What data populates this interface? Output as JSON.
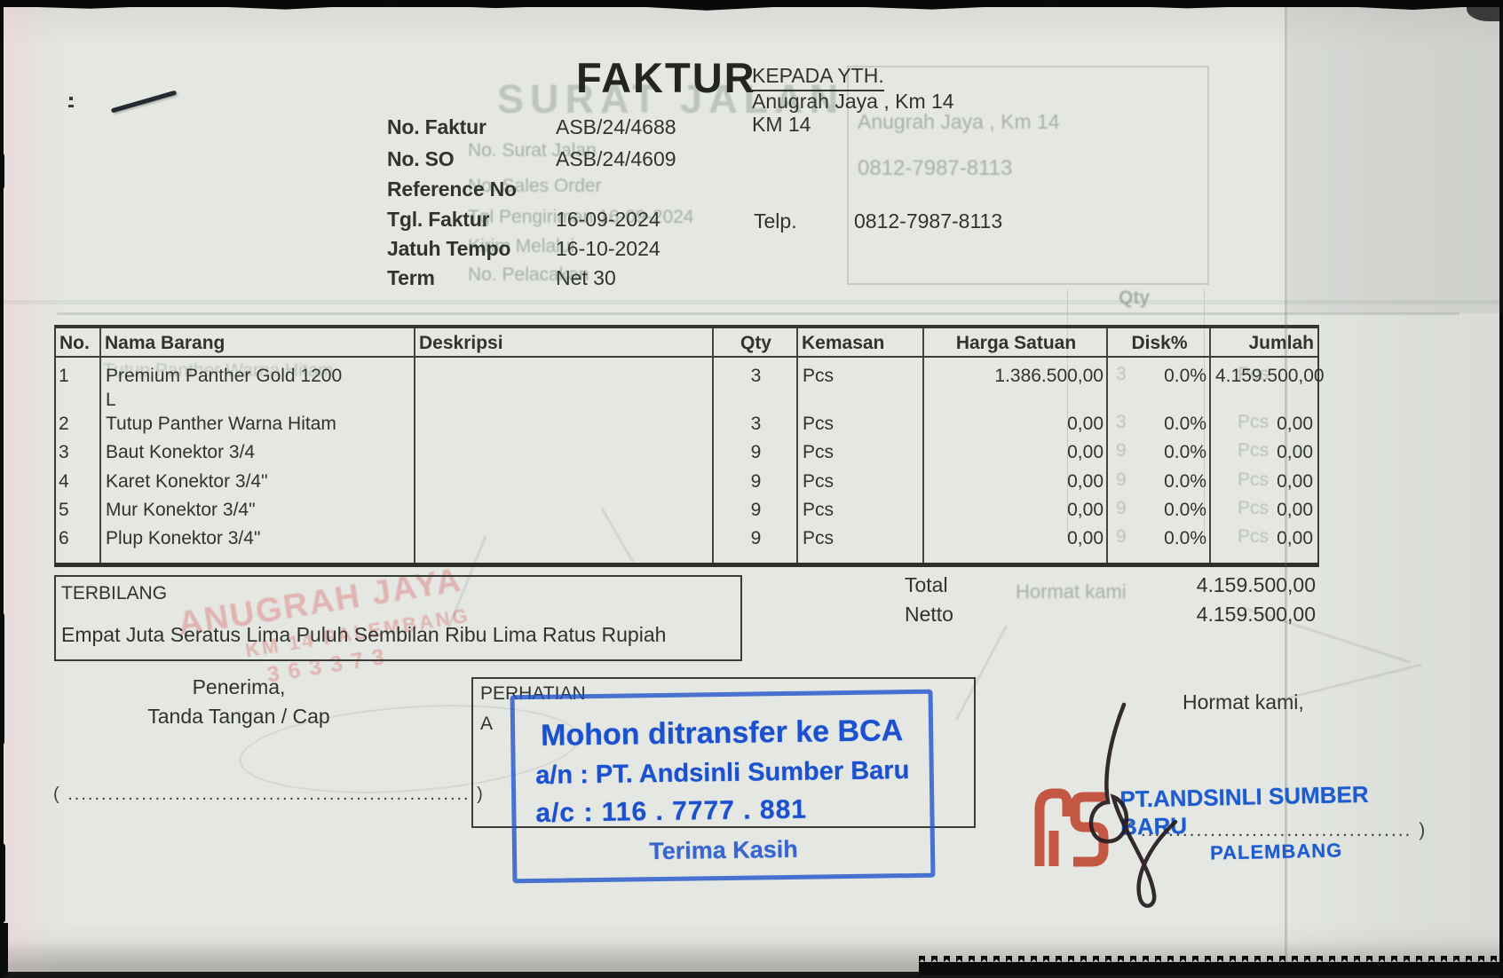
{
  "doc": {
    "title": "FAKTUR",
    "recipient": {
      "label": "KEPADA YTH.",
      "name": "Anugrah Jaya , Km 14",
      "address": "KM 14",
      "phone_label": "Telp.",
      "phone": "0812-7987-8113"
    },
    "meta": [
      {
        "label": "No. Faktur",
        "value": "ASB/24/4688"
      },
      {
        "label": "No. SO",
        "value": "ASB/24/4609"
      },
      {
        "label": "Reference No",
        "value": ""
      },
      {
        "label": "Tgl. Faktur",
        "value": "16-09-2024"
      },
      {
        "label": "Jatuh Tempo",
        "value": "16-10-2024"
      },
      {
        "label": "Term",
        "value": "Net 30"
      }
    ],
    "table": {
      "headers": [
        "No.",
        "Nama Barang",
        "Deskripsi",
        "Qty",
        "Kemasan",
        "Harga Satuan",
        "Disk%",
        "Jumlah"
      ],
      "rows": [
        {
          "no": "1",
          "nama": "Premium Panther Gold 1200\nL",
          "deskripsi": "",
          "qty": "3",
          "kemasan": "Pcs",
          "harga": "1.386.500,00",
          "disk": "0.0%",
          "jumlah": "4.159.500,00"
        },
        {
          "no": "2",
          "nama": "Tutup Panther Warna Hitam",
          "deskripsi": "",
          "qty": "3",
          "kemasan": "Pcs",
          "harga": "0,00",
          "disk": "0.0%",
          "jumlah": "0,00"
        },
        {
          "no": "3",
          "nama": "Baut Konektor 3/4",
          "deskripsi": "",
          "qty": "9",
          "kemasan": "Pcs",
          "harga": "0,00",
          "disk": "0.0%",
          "jumlah": "0,00"
        },
        {
          "no": "4",
          "nama": "Karet Konektor 3/4\"",
          "deskripsi": "",
          "qty": "9",
          "kemasan": "Pcs",
          "harga": "0,00",
          "disk": "0.0%",
          "jumlah": "0,00"
        },
        {
          "no": "5",
          "nama": "Mur Konektor 3/4\"",
          "deskripsi": "",
          "qty": "9",
          "kemasan": "Pcs",
          "harga": "0,00",
          "disk": "0.0%",
          "jumlah": "0,00"
        },
        {
          "no": "6",
          "nama": "Plup Konektor 3/4\"",
          "deskripsi": "",
          "qty": "9",
          "kemasan": "Pcs",
          "harga": "0,00",
          "disk": "0.0%",
          "jumlah": "0,00"
        }
      ]
    },
    "totals": [
      {
        "label": "Total",
        "value": "4.159.500,00"
      },
      {
        "label": "Netto",
        "value": "4.159.500,00"
      }
    ],
    "terbilang": {
      "label": "TERBILANG",
      "text": "Empat Juta Seratus Lima Puluh Sembilan Ribu Lima Ratus Rupiah"
    },
    "signature_left": {
      "line1": "Penerima,",
      "line2": "Tanda Tangan / Cap",
      "dots": "( ............................................................ )"
    },
    "perhatian": {
      "label": "PERHATIAN",
      "partial": "A"
    },
    "stamp_blue": {
      "line1": "Mohon ditransfer ke BCA",
      "line2": "a/n : PT. Andsinli Sumber Baru",
      "line3": "a/c : 116 . 7777 . 881",
      "line4": "Terima Kasih"
    },
    "signature_right": {
      "label": "Hormat kami,",
      "company": "PT.ANDSINLI SUMBER BARU",
      "city": "PALEMBANG",
      "dots": "( ....................................... )"
    }
  },
  "ghost": {
    "back_title": "SURAT JALAN",
    "box_line1": "Anugrah Jaya , Km 14",
    "box_line2": "0812-7987-8113",
    "meta_lines": [
      "No. Surat Jalan",
      "No. Sales Order",
      "Tgl Pengiriman   16-09-2024",
      "Kirim Melalui",
      "No. Pelacakan"
    ],
    "row_echo": "Tutup Panther Warna Hitam",
    "qty_header": "Qty",
    "hormat": "Hormat kami",
    "stamp_line1": "ANUGRAH JAYA",
    "stamp_line2": "KM 14 PALEMBANG",
    "stamp_line3": "363373"
  },
  "colors": {
    "paper": "#e4e7e2",
    "ink": "#30332e",
    "stamp_blue": "#1b50cf",
    "stamp_red": "#c0432f",
    "ghost_pink": "#db7e7e"
  }
}
